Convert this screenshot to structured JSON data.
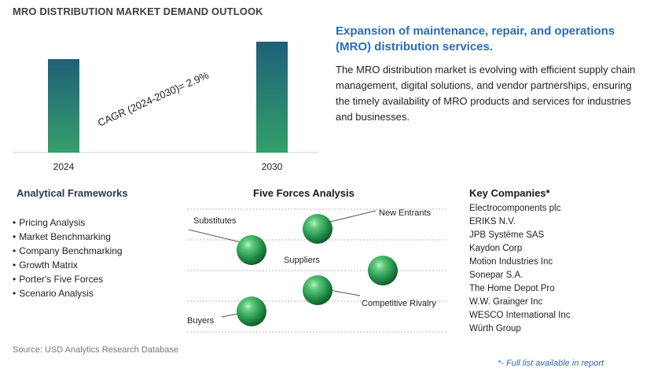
{
  "page_title": "MRO DISTRIBUTION MARKET DEMAND OUTLOOK",
  "chart_data": {
    "type": "bar",
    "categories": [
      "2024",
      "2030"
    ],
    "values": [
      1.0,
      1.186
    ],
    "annotation": "CAGR (2024-2030)=   2.9%",
    "colors": {
      "bar_top": "#1f6f7a",
      "bar_bottom": "#35a06c",
      "axis": "#d0d0d0"
    }
  },
  "headline": "Expansion of maintenance, repair, and operations (MRO) distribution services.",
  "description": "The MRO distribution market is evolving with efficient supply chain management, digital solutions, and vendor partnerships, ensuring the timely availability of MRO products and services for industries and businesses.",
  "frameworks": {
    "title": "Analytical Frameworks",
    "items": [
      "Pricing Analysis",
      "Market Benchmarking",
      "Company Benchmarking",
      "Growth Matrix",
      "Porter's Five Forces",
      "Scenario Analysis"
    ]
  },
  "five_forces": {
    "title": "Five Forces Analysis",
    "labels": {
      "substitutes": "Substitutes",
      "new_entrants": "New Entrants",
      "suppliers": "Suppliers",
      "competitive_rivalry": "Competitive Rivalry",
      "buyers": "Buyers"
    },
    "sphere_color": "#2e9a4f"
  },
  "companies": {
    "title": "Key Companies*",
    "items": [
      "Electrocomponents plc",
      "ERIKS N.V.",
      "JPB Système SAS",
      "Kaydon Corp",
      "Motion Industries Inc",
      "Sonepar S.A.",
      "The Home Depot Pro",
      "W.W. Grainger Inc",
      "WESCO International Inc",
      "Würth Group"
    ]
  },
  "source": "Source: USD Analytics Research Database",
  "footnote": "*- Full list available in report"
}
